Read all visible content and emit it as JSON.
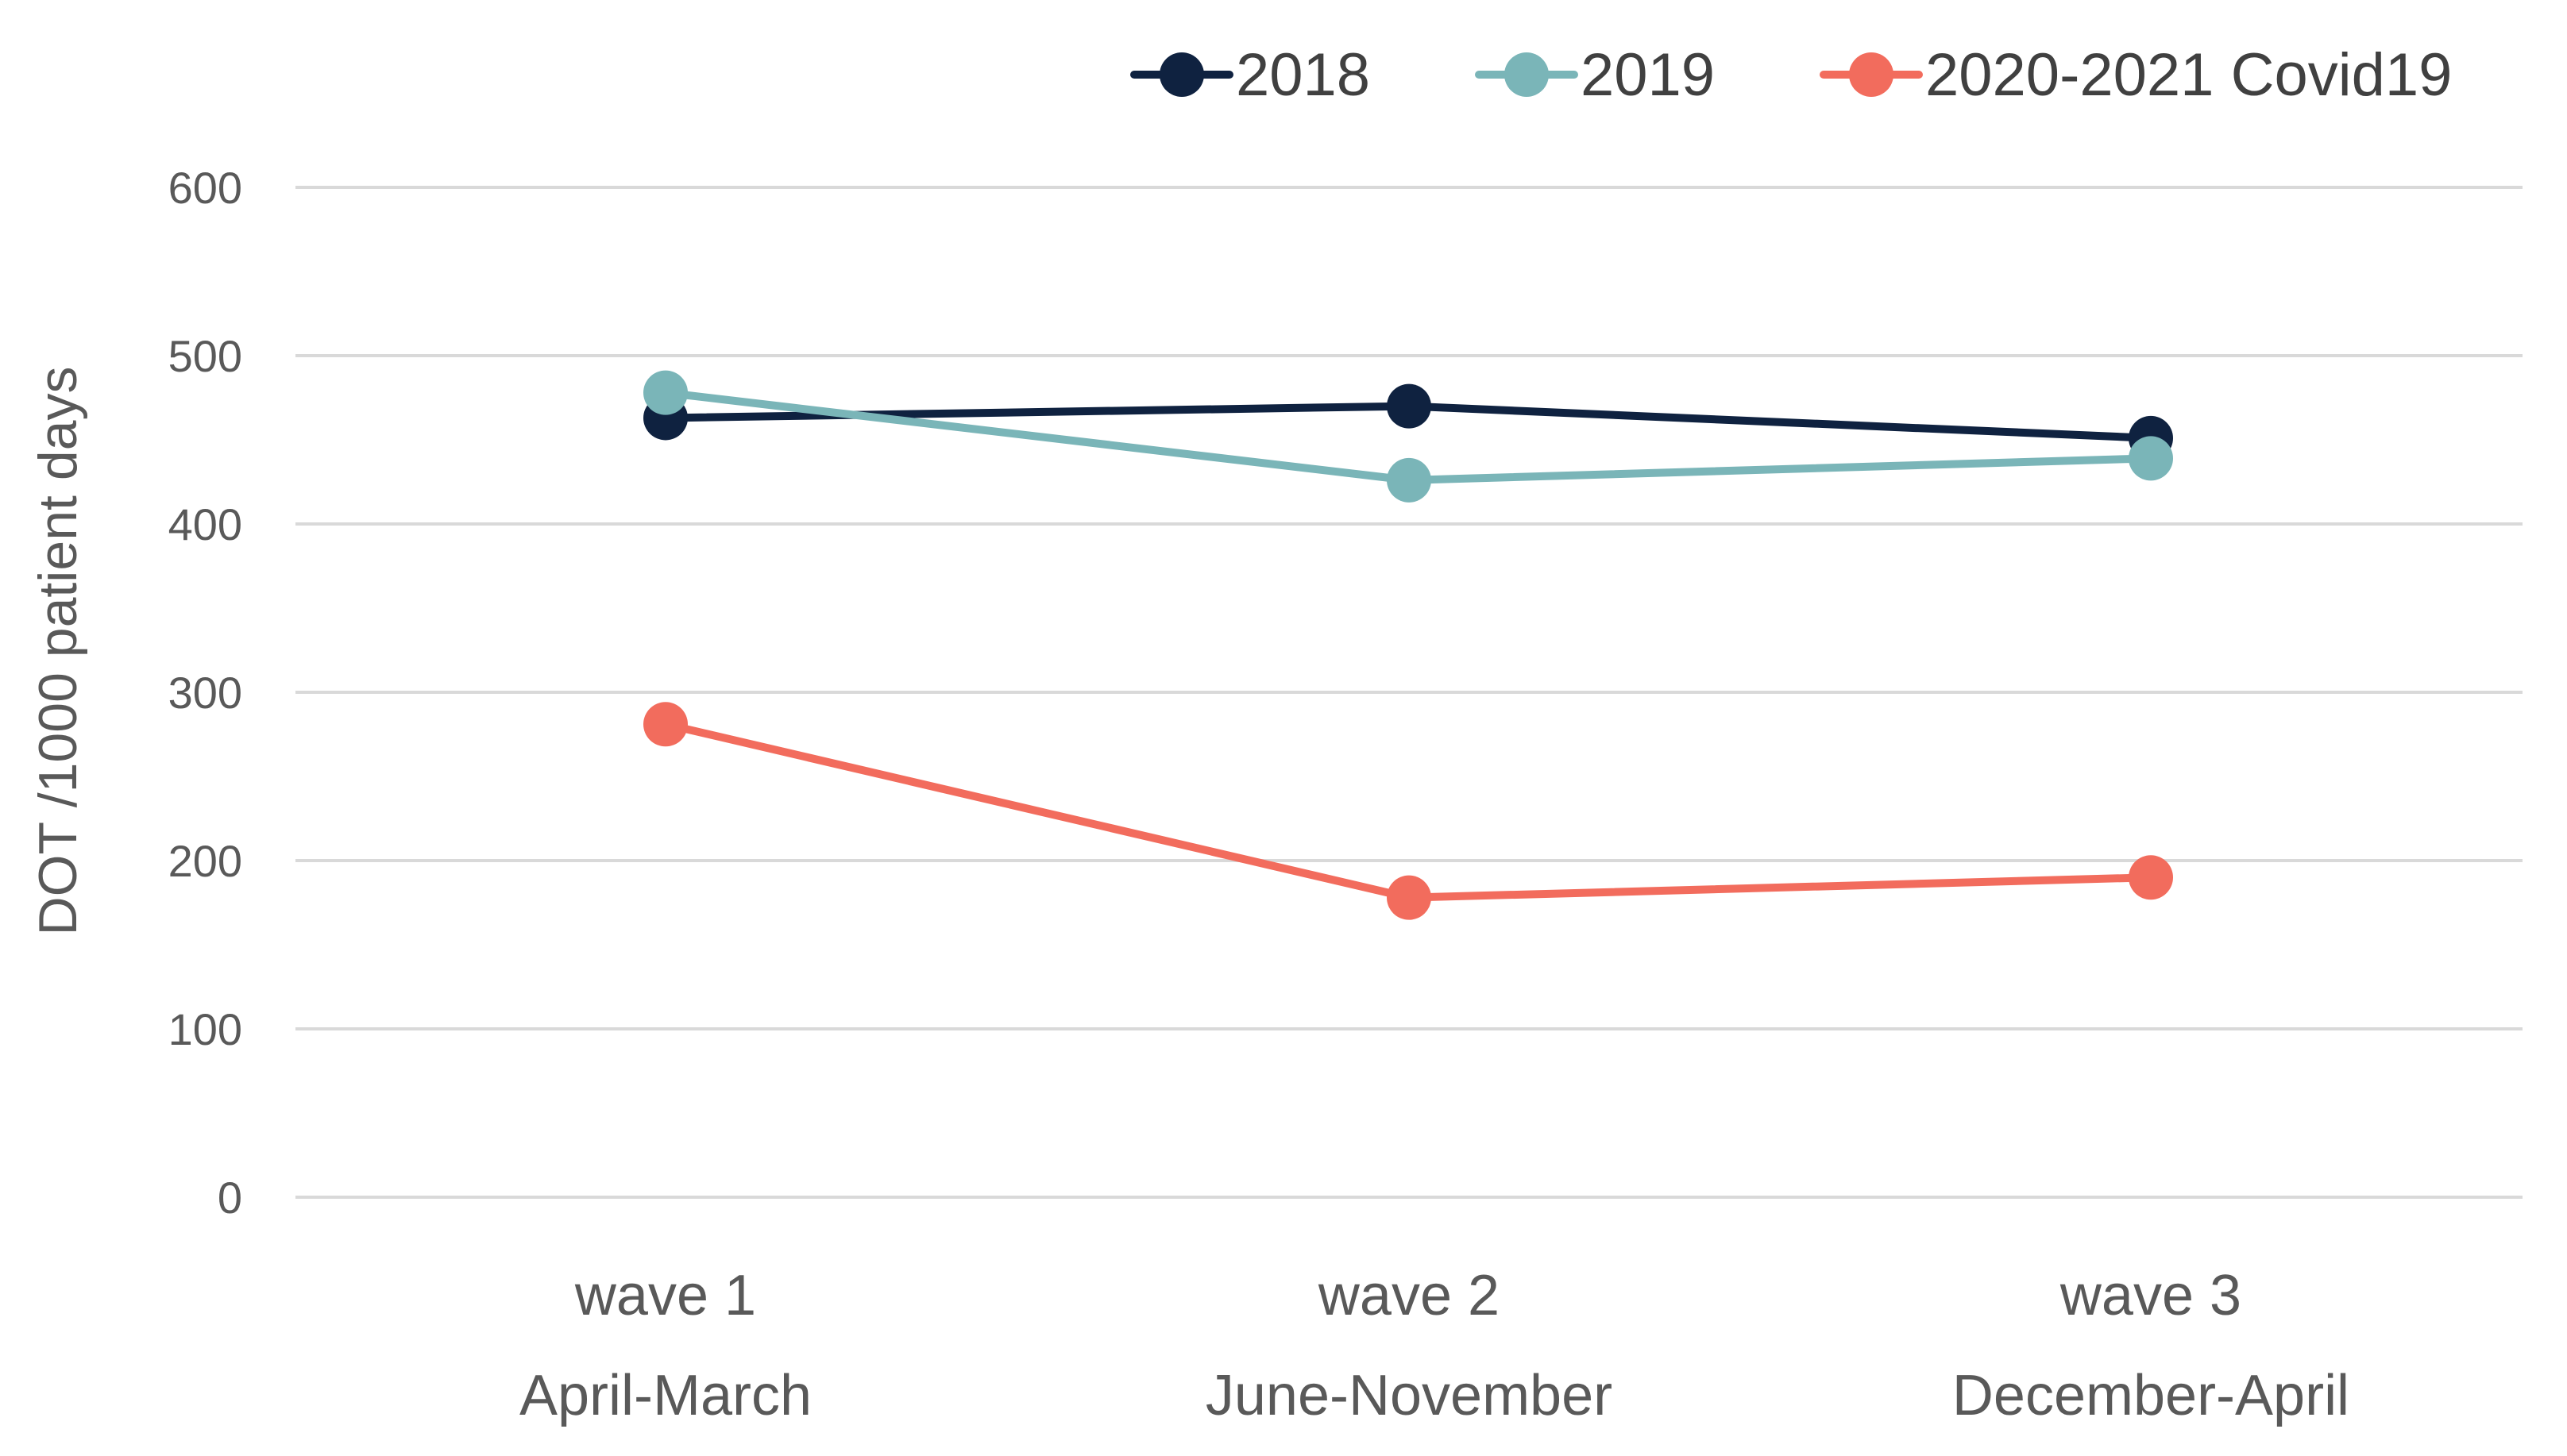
{
  "chart_data": {
    "type": "line",
    "title": "",
    "xlabel": "",
    "ylabel": "DOT /1000 patient days",
    "ylim": [
      0,
      600
    ],
    "yticks": [
      0,
      100,
      200,
      300,
      400,
      500,
      600
    ],
    "grid": true,
    "legend_position": "top-right",
    "categories": [
      {
        "line1": "wave 1",
        "line2": "April-March"
      },
      {
        "line1": "wave 2",
        "line2": "June-November"
      },
      {
        "line1": "wave 3",
        "line2": "December-April"
      }
    ],
    "series": [
      {
        "name": "2018",
        "color": "#0f2240",
        "values": [
          463,
          470,
          451
        ]
      },
      {
        "name": "2019",
        "color": "#7ab5b8",
        "values": [
          478,
          426,
          439
        ]
      },
      {
        "name": "2020-2021 Covid19",
        "color": "#f26c5d",
        "values": [
          281,
          178,
          190
        ]
      }
    ]
  }
}
